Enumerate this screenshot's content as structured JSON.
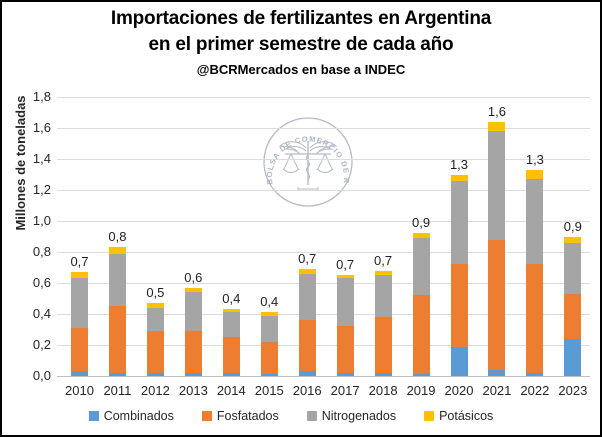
{
  "title": {
    "line1": "Importaciones de fertilizantes en Argentina",
    "line2": "en el primer semestre de cada año",
    "subtitle": "@BCRMercados en base a INDEC"
  },
  "watermark": {
    "seal_text": "BOLSA DE COMERCIO DE ROSARIO"
  },
  "colors": {
    "combinados": "#5B9BD5",
    "fosfatados": "#ED7D31",
    "nitrogenados": "#A5A5A5",
    "potasicos": "#FFC000",
    "gridline": "#dcdcdc",
    "axis_line": "#bfbfbf",
    "text": "#262626"
  },
  "chart_data": {
    "type": "bar",
    "stacked": true,
    "title": "Importaciones de fertilizantes en Argentina en el primer semestre de cada año",
    "xlabel": "",
    "ylabel": "Millones de toneladas",
    "ylim": [
      0,
      1.8
    ],
    "grid": true,
    "legend_position": "bottom",
    "y_ticks": [
      "0,0",
      "0,2",
      "0,4",
      "0,6",
      "0,8",
      "1,0",
      "1,2",
      "1,4",
      "1,6",
      "1,8"
    ],
    "categories": [
      "2010",
      "2011",
      "2012",
      "2013",
      "2014",
      "2015",
      "2016",
      "2017",
      "2018",
      "2019",
      "2020",
      "2021",
      "2022",
      "2023"
    ],
    "series": [
      {
        "name": "Combinados",
        "color": "#5B9BD5",
        "values": [
          0.03,
          0.02,
          0.02,
          0.02,
          0.02,
          0.01,
          0.03,
          0.02,
          0.02,
          0.01,
          0.19,
          0.04,
          0.02,
          0.24
        ]
      },
      {
        "name": "Fosfatados",
        "color": "#ED7D31",
        "values": [
          0.28,
          0.43,
          0.27,
          0.27,
          0.23,
          0.21,
          0.33,
          0.3,
          0.36,
          0.51,
          0.53,
          0.84,
          0.7,
          0.29
        ]
      },
      {
        "name": "Nitrogenados",
        "color": "#A5A5A5",
        "values": [
          0.32,
          0.34,
          0.15,
          0.25,
          0.16,
          0.17,
          0.3,
          0.31,
          0.27,
          0.37,
          0.54,
          0.7,
          0.55,
          0.33
        ]
      },
      {
        "name": "Potásicos",
        "color": "#FFC000",
        "values": [
          0.04,
          0.04,
          0.03,
          0.03,
          0.02,
          0.02,
          0.03,
          0.02,
          0.03,
          0.03,
          0.04,
          0.06,
          0.06,
          0.04
        ]
      }
    ],
    "totals": [
      0.67,
      0.83,
      0.47,
      0.57,
      0.43,
      0.41,
      0.69,
      0.65,
      0.68,
      0.92,
      1.3,
      1.64,
      1.33,
      0.9
    ],
    "total_labels": [
      "0,7",
      "0,8",
      "0,5",
      "0,6",
      "0,4",
      "0,4",
      "0,7",
      "0,7",
      "0,7",
      "0,9",
      "1,3",
      "1,6",
      "1,3",
      "0,9"
    ]
  }
}
